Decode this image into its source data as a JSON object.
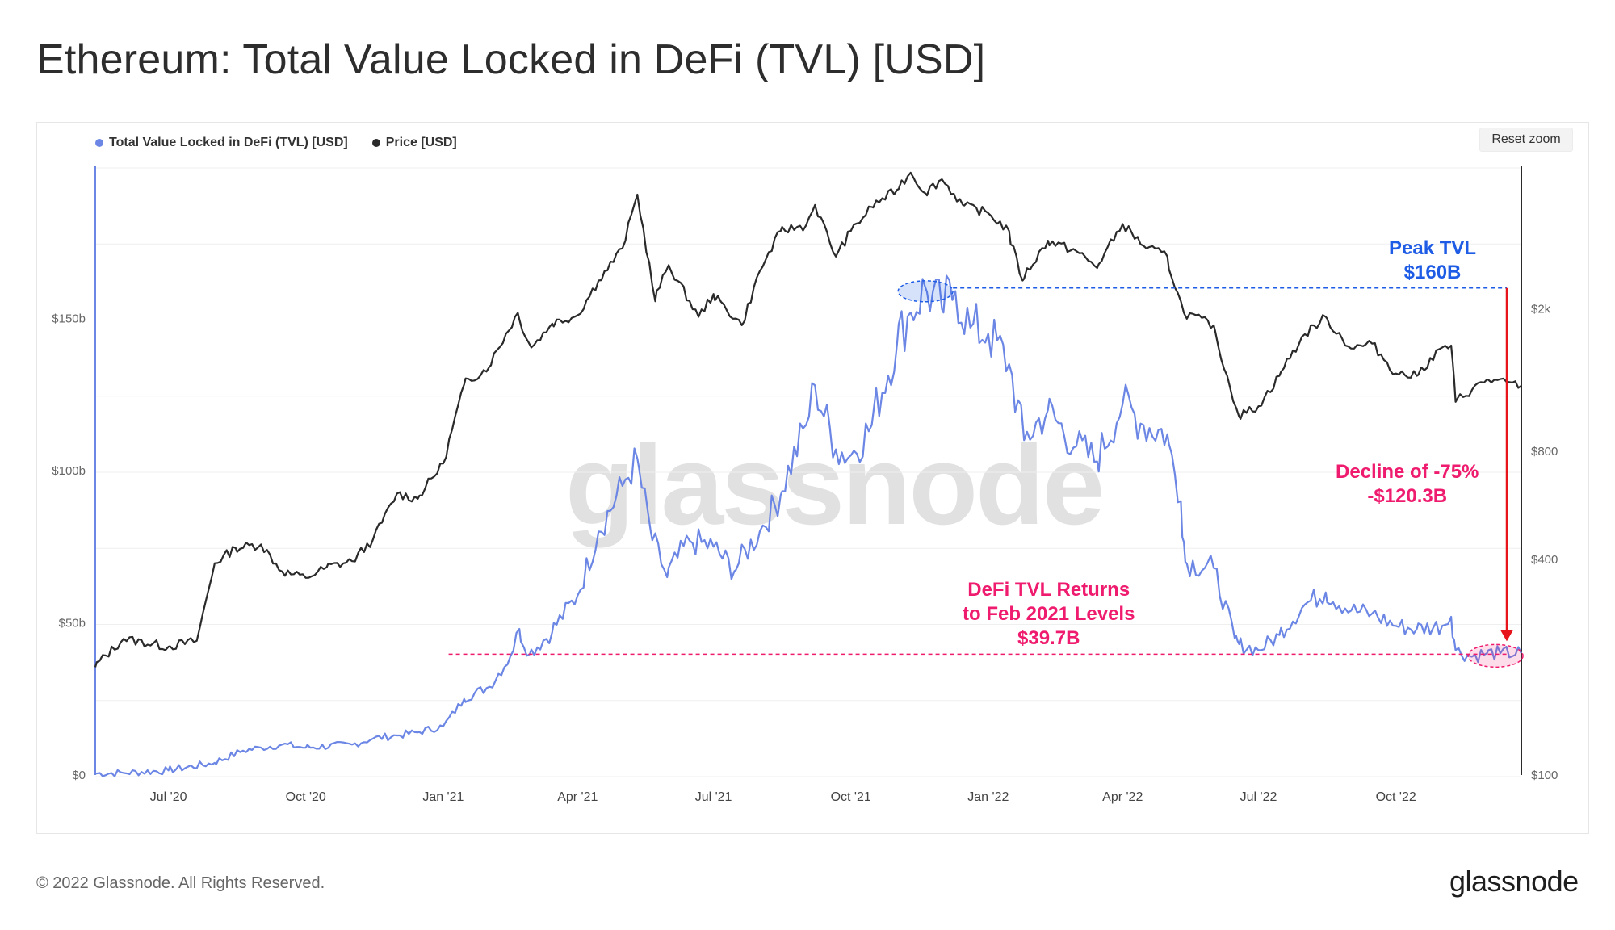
{
  "header": {
    "title": "Ethereum: Total Value Locked in DeFi (TVL) [USD]"
  },
  "toolbar": {
    "reset_zoom_label": "Reset zoom"
  },
  "footer": {
    "copyright": "© 2022 Glassnode. All Rights Reserved.",
    "logo_text": "glassnode"
  },
  "watermark": {
    "text": "glassnode"
  },
  "colors": {
    "tvl": "#6b86e4",
    "price": "#2a2a2a",
    "peak": "#1e5ce6",
    "level": "#ef1b6e",
    "arrow": "#e8141c"
  },
  "chart_data": {
    "type": "line",
    "title": "Ethereum: Total Value Locked in DeFi (TVL) [USD]",
    "x_range": [
      "2020-05-13",
      "2022-12-24"
    ],
    "x_ticks": [
      {
        "date": "2020-07-01",
        "label": "Jul '20"
      },
      {
        "date": "2020-10-01",
        "label": "Oct '20"
      },
      {
        "date": "2021-01-01",
        "label": "Jan '21"
      },
      {
        "date": "2021-04-01",
        "label": "Apr '21"
      },
      {
        "date": "2021-07-01",
        "label": "Jul '21"
      },
      {
        "date": "2021-10-01",
        "label": "Oct '21"
      },
      {
        "date": "2022-01-01",
        "label": "Jan '22"
      },
      {
        "date": "2022-04-01",
        "label": "Apr '22"
      },
      {
        "date": "2022-07-01",
        "label": "Jul '22"
      },
      {
        "date": "2022-10-01",
        "label": "Oct '22"
      }
    ],
    "y_left": {
      "scale": "linear",
      "range": [
        0,
        200
      ],
      "unit": "billion USD",
      "ticks": [
        {
          "value": 0,
          "label": "$0"
        },
        {
          "value": 50,
          "label": "$50b"
        },
        {
          "value": 100,
          "label": "$100b"
        },
        {
          "value": 150,
          "label": "$150b"
        }
      ]
    },
    "y_right": {
      "scale": "log",
      "range": [
        100,
        5000
      ],
      "unit": "USD",
      "ticks": [
        {
          "value": 100,
          "label": "$100"
        },
        {
          "value": 400,
          "label": "$400"
        },
        {
          "value": 800,
          "label": "$800"
        },
        {
          "value": 2000,
          "label": "$2k"
        }
      ]
    },
    "grid": true,
    "legend_position": "top-left",
    "series": [
      {
        "name": "Total Value Locked in DeFi (TVL) [USD]",
        "axis": "left",
        "points": [
          [
            "2020-05-13",
            0.5
          ],
          [
            "2020-06-01",
            0.7
          ],
          [
            "2020-07-01",
            1.5
          ],
          [
            "2020-08-01",
            4
          ],
          [
            "2020-08-20",
            8
          ],
          [
            "2020-09-01",
            9
          ],
          [
            "2020-09-15",
            10
          ],
          [
            "2020-10-01",
            9
          ],
          [
            "2020-11-01",
            10
          ],
          [
            "2020-11-15",
            12
          ],
          [
            "2020-12-01",
            13
          ],
          [
            "2020-12-15",
            14
          ],
          [
            "2021-01-01",
            16
          ],
          [
            "2021-01-15",
            25
          ],
          [
            "2021-02-01",
            29
          ],
          [
            "2021-02-15",
            39
          ],
          [
            "2021-02-21",
            48
          ],
          [
            "2021-02-28",
            39.7
          ],
          [
            "2021-03-15",
            47
          ],
          [
            "2021-04-01",
            59
          ],
          [
            "2021-04-15",
            80
          ],
          [
            "2021-05-01",
            95
          ],
          [
            "2021-05-11",
            104
          ],
          [
            "2021-05-20",
            80
          ],
          [
            "2021-05-31",
            65
          ],
          [
            "2021-06-15",
            77
          ],
          [
            "2021-07-01",
            75
          ],
          [
            "2021-07-15",
            67
          ],
          [
            "2021-08-01",
            80
          ],
          [
            "2021-08-15",
            92
          ],
          [
            "2021-09-01",
            115
          ],
          [
            "2021-09-07",
            128
          ],
          [
            "2021-09-21",
            107
          ],
          [
            "2021-10-01",
            105
          ],
          [
            "2021-10-15",
            115
          ],
          [
            "2021-11-01",
            142
          ],
          [
            "2021-11-10",
            152
          ],
          [
            "2021-11-20",
            160
          ],
          [
            "2021-12-01",
            153
          ],
          [
            "2021-12-10",
            159
          ],
          [
            "2021-12-20",
            147
          ],
          [
            "2022-01-01",
            145
          ],
          [
            "2022-01-15",
            135
          ],
          [
            "2022-01-25",
            110
          ],
          [
            "2022-02-10",
            120
          ],
          [
            "2022-03-01",
            108
          ],
          [
            "2022-03-15",
            103
          ],
          [
            "2022-04-01",
            122
          ],
          [
            "2022-04-15",
            115
          ],
          [
            "2022-05-01",
            112
          ],
          [
            "2022-05-10",
            90
          ],
          [
            "2022-05-13",
            70
          ],
          [
            "2022-06-01",
            68
          ],
          [
            "2022-06-15",
            45
          ],
          [
            "2022-06-18",
            43
          ],
          [
            "2022-07-01",
            41
          ],
          [
            "2022-07-15",
            46
          ],
          [
            "2022-08-01",
            56
          ],
          [
            "2022-08-15",
            60
          ],
          [
            "2022-09-01",
            54
          ],
          [
            "2022-09-15",
            53
          ],
          [
            "2022-10-01",
            49
          ],
          [
            "2022-10-15",
            48
          ],
          [
            "2022-11-01",
            49
          ],
          [
            "2022-11-07",
            52
          ],
          [
            "2022-11-10",
            41
          ],
          [
            "2022-11-20",
            39
          ],
          [
            "2022-12-01",
            40
          ],
          [
            "2022-12-10",
            40
          ],
          [
            "2022-12-24",
            40
          ]
        ]
      },
      {
        "name": "Price [USD]",
        "axis": "right",
        "points": [
          [
            "2020-05-13",
            200
          ],
          [
            "2020-06-01",
            240
          ],
          [
            "2020-07-01",
            228
          ],
          [
            "2020-07-20",
            237
          ],
          [
            "2020-08-01",
            390
          ],
          [
            "2020-08-15",
            430
          ],
          [
            "2020-09-01",
            440
          ],
          [
            "2020-09-15",
            370
          ],
          [
            "2020-10-01",
            355
          ],
          [
            "2020-10-15",
            380
          ],
          [
            "2020-11-01",
            395
          ],
          [
            "2020-11-15",
            455
          ],
          [
            "2020-12-01",
            610
          ],
          [
            "2020-12-15",
            590
          ],
          [
            "2021-01-01",
            740
          ],
          [
            "2021-01-15",
            1230
          ],
          [
            "2021-02-01",
            1380
          ],
          [
            "2021-02-20",
            1950
          ],
          [
            "2021-03-01",
            1560
          ],
          [
            "2021-03-15",
            1820
          ],
          [
            "2021-04-01",
            1920
          ],
          [
            "2021-04-15",
            2400
          ],
          [
            "2021-05-01",
            2950
          ],
          [
            "2021-05-11",
            4170
          ],
          [
            "2021-05-23",
            2100
          ],
          [
            "2021-06-01",
            2650
          ],
          [
            "2021-06-21",
            1900
          ],
          [
            "2021-07-01",
            2200
          ],
          [
            "2021-07-20",
            1800
          ],
          [
            "2021-08-01",
            2550
          ],
          [
            "2021-08-15",
            3300
          ],
          [
            "2021-09-01",
            3420
          ],
          [
            "2021-09-07",
            3900
          ],
          [
            "2021-09-21",
            2800
          ],
          [
            "2021-10-01",
            3300
          ],
          [
            "2021-10-15",
            3850
          ],
          [
            "2021-11-01",
            4300
          ],
          [
            "2021-11-10",
            4800
          ],
          [
            "2021-11-20",
            4200
          ],
          [
            "2021-12-01",
            4600
          ],
          [
            "2021-12-15",
            3900
          ],
          [
            "2022-01-01",
            3700
          ],
          [
            "2022-01-15",
            3300
          ],
          [
            "2022-01-24",
            2400
          ],
          [
            "2022-02-10",
            3100
          ],
          [
            "2022-03-01",
            2900
          ],
          [
            "2022-03-15",
            2600
          ],
          [
            "2022-04-01",
            3450
          ],
          [
            "2022-04-15",
            3000
          ],
          [
            "2022-05-01",
            2800
          ],
          [
            "2022-05-12",
            1950
          ],
          [
            "2022-06-01",
            1800
          ],
          [
            "2022-06-18",
            1000
          ],
          [
            "2022-07-01",
            1070
          ],
          [
            "2022-07-15",
            1300
          ],
          [
            "2022-08-01",
            1700
          ],
          [
            "2022-08-15",
            1900
          ],
          [
            "2022-09-01",
            1550
          ],
          [
            "2022-09-15",
            1600
          ],
          [
            "2022-10-01",
            1320
          ],
          [
            "2022-10-15",
            1300
          ],
          [
            "2022-11-01",
            1560
          ],
          [
            "2022-11-07",
            1580
          ],
          [
            "2022-11-10",
            1100
          ],
          [
            "2022-12-01",
            1270
          ],
          [
            "2022-12-24",
            1220
          ]
        ]
      }
    ],
    "annotations": [
      {
        "text": [
          "Peak TVL",
          "$160B"
        ],
        "value": 160
      },
      {
        "text": [
          "Decline of -75%",
          "-$120.3B"
        ]
      },
      {
        "text": [
          "DeFi TVL Returns",
          "to Feb 2021 Levels",
          "$39.7B"
        ],
        "value": 39.7
      }
    ]
  }
}
